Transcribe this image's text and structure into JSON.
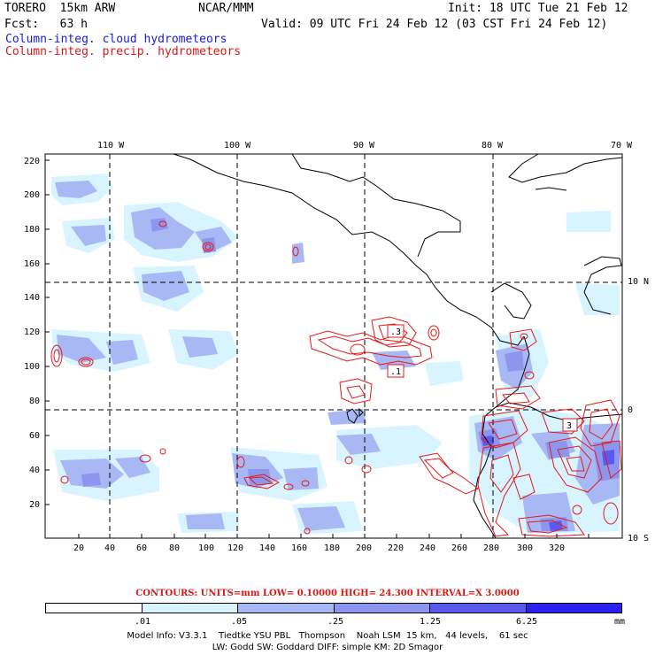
{
  "header": {
    "model": "TORERO  15km ARW",
    "center": "NCAR/MMM",
    "init": "Init: 18 UTC Tue 21 Feb 12",
    "fcst": "Fcst:   63 h",
    "valid": "Valid: 09 UTC Fri 24 Feb 12 (03 CST Fri 24 Feb 12)",
    "line_blue": "Column-integ. cloud hydrometeors",
    "line_red": "Column-integ. precip. hydrometeors"
  },
  "map": {
    "lon_labels": [
      "110 W",
      "100 W",
      "90 W",
      "80 W",
      "70 W"
    ],
    "lat_labels": [
      "10 N",
      "0",
      "10 S"
    ],
    "y_ticks": [
      "220",
      "200",
      "180",
      "160",
      "140",
      "120",
      "100",
      "80",
      "60",
      "40",
      "20"
    ],
    "x_ticks": [
      "20",
      "40",
      "60",
      "80",
      "100",
      "120",
      "140",
      "160",
      "180",
      "200",
      "220",
      "240",
      "260",
      "280",
      "300",
      "320"
    ],
    "contour_labels": [
      ".3",
      ".1",
      "3"
    ],
    "colors": {
      "cloud_shades": [
        "#ffffff",
        "#d8f4ff",
        "#a8b8f4",
        "#8c96ee",
        "#5a5af0",
        "#2a22f2"
      ],
      "precip_contour": "#e81818",
      "coast": "#000000",
      "grid": "#000000"
    }
  },
  "footer": {
    "contours": "CONTOURS:  UNITS=mm  LOW= 0.10000      HIGH=  24.300      INTERVAL=X  3.0000",
    "legend_labels": [
      ".01",
      ".05",
      ".25",
      "1.25",
      "6.25"
    ],
    "legend_unit": "mm",
    "info1": "Model Info: V3.3.1    Tiedtke YSU PBL   Thompson    Noah LSM  15 km,   44 levels,    61 sec",
    "info2": "LW: Godd SW: Goddard DIFF: simple KM: 2D Smagor"
  }
}
